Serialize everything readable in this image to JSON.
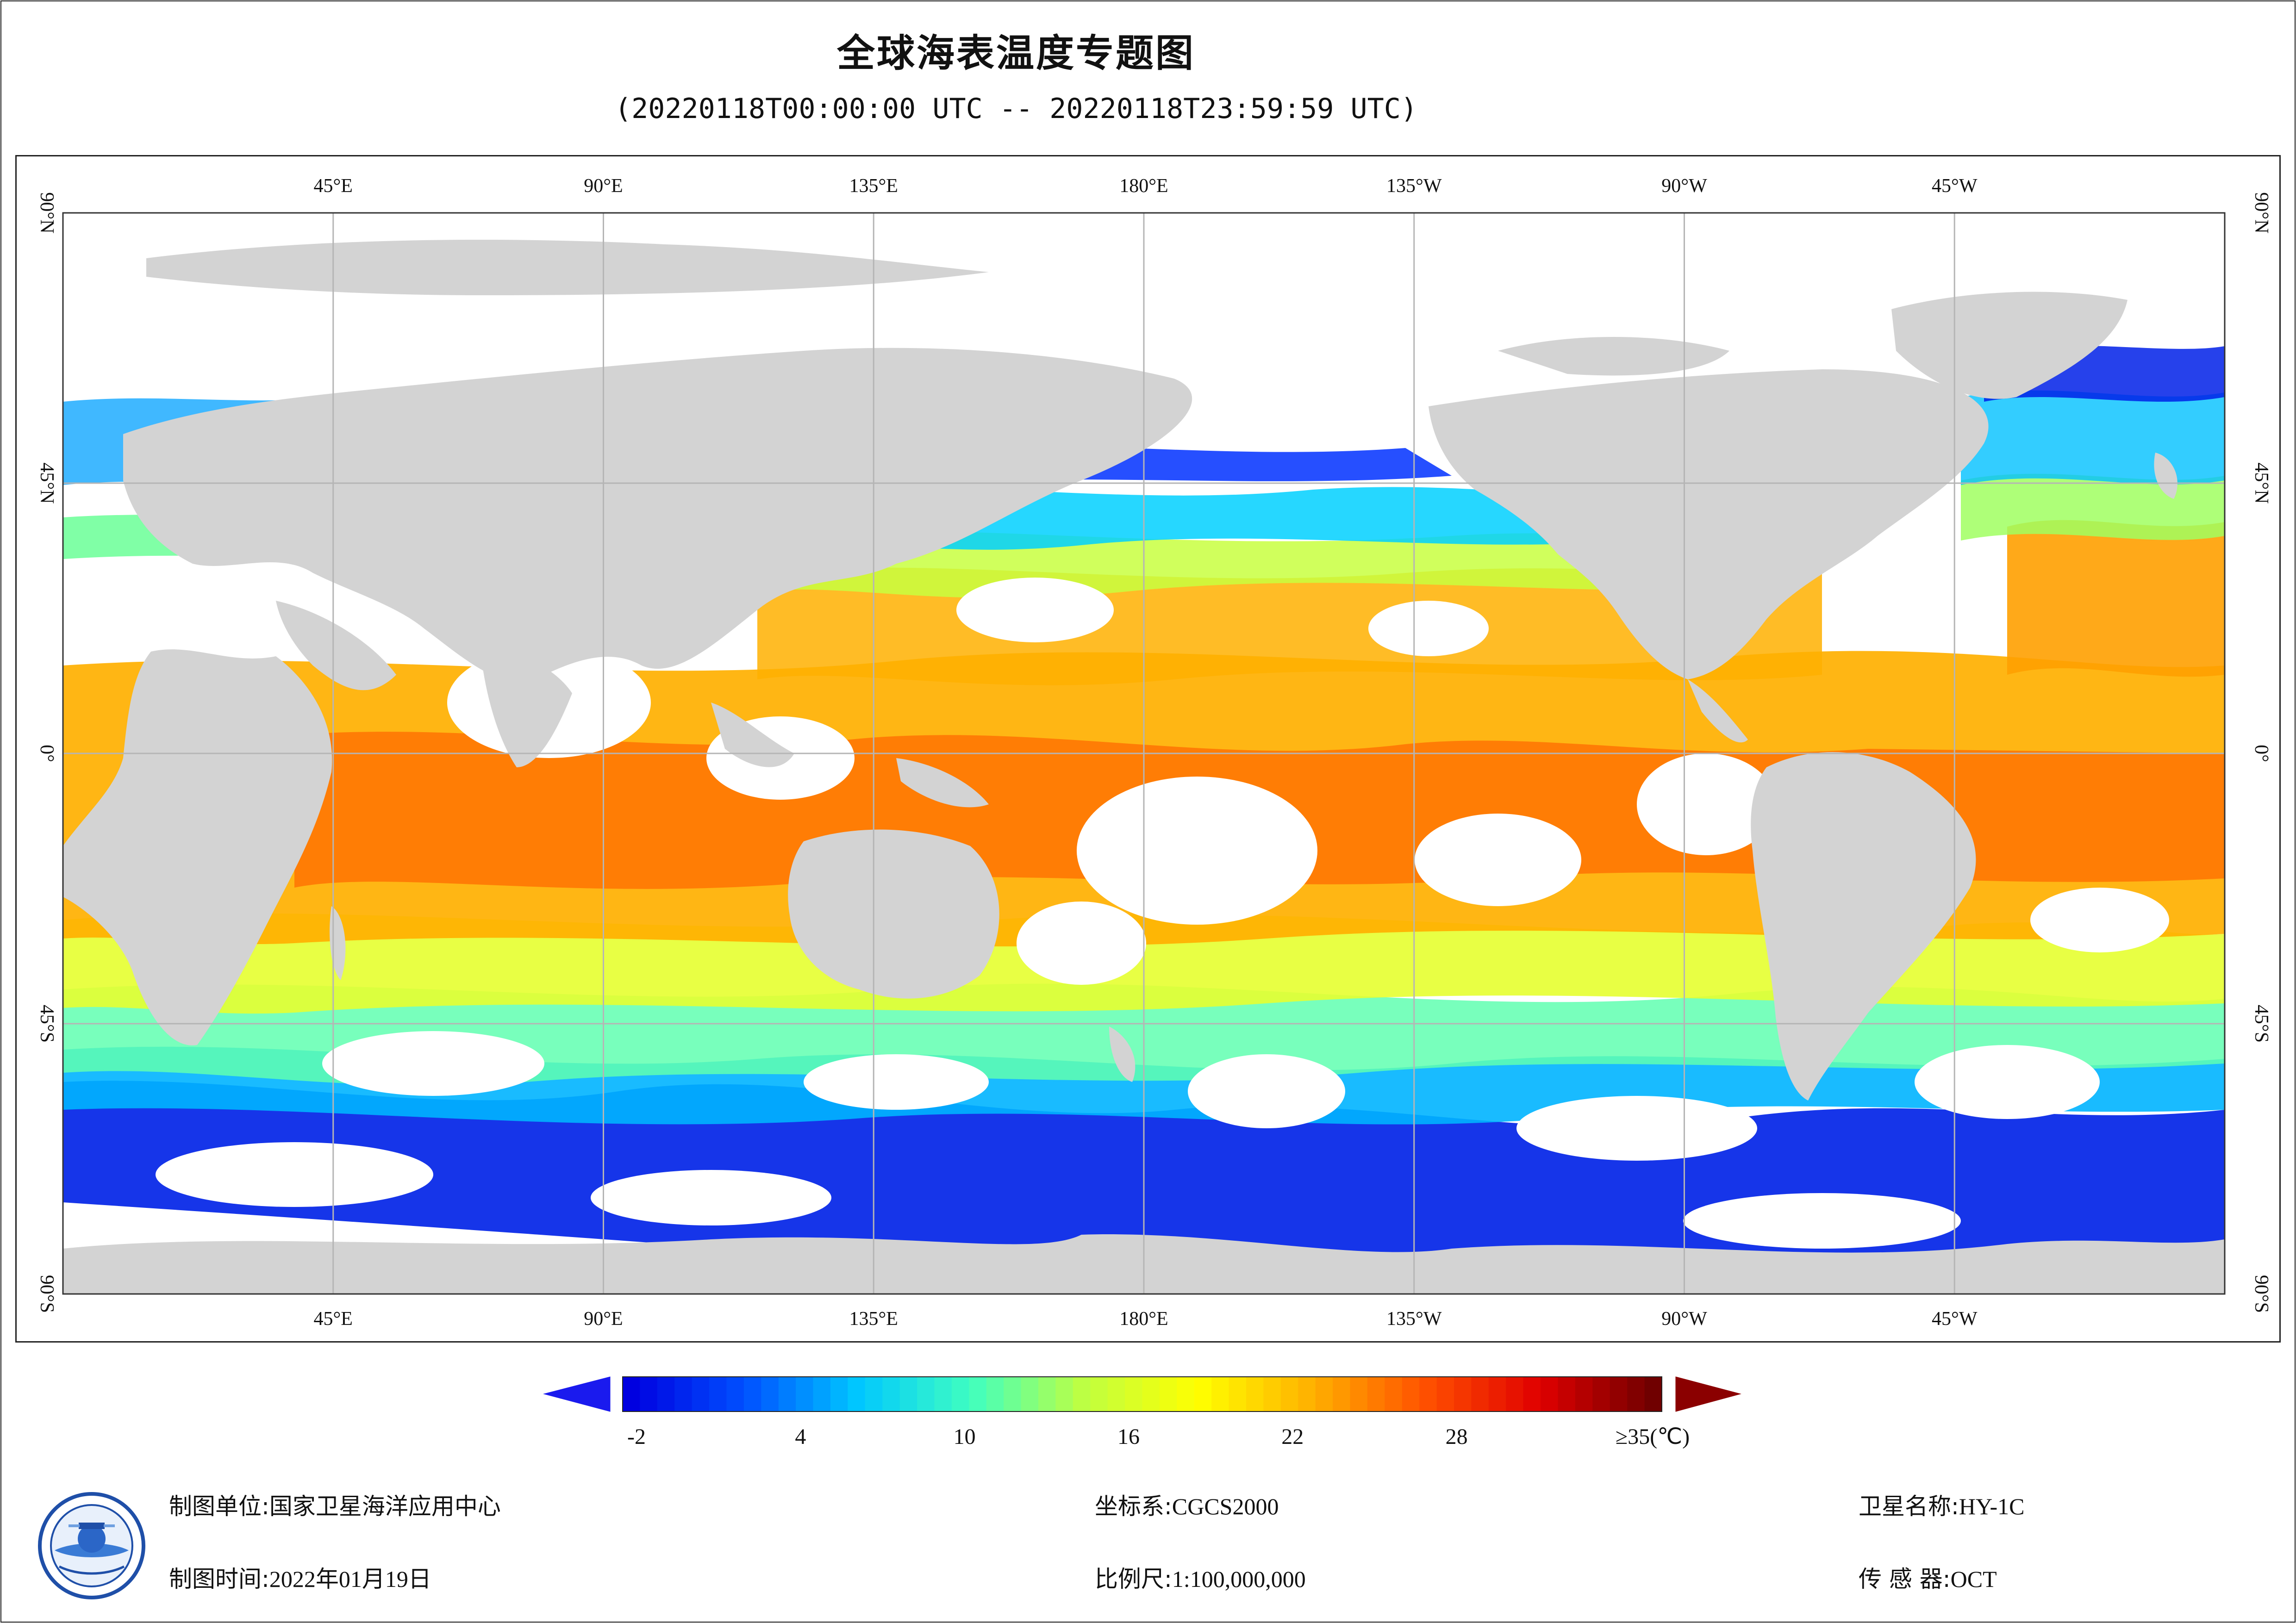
{
  "title": "全球海表温度专题图",
  "subtitle": "(20220118T00:00:00 UTC -- 20220118T23:59:59 UTC)",
  "map": {
    "top_lon_labels": [
      "45°E",
      "90°E",
      "135°E",
      "180°E",
      "135°W",
      "90°W",
      "45°W"
    ],
    "bottom_lon_labels": [
      "45°E",
      "90°E",
      "135°E",
      "180°E",
      "135°W",
      "90°W",
      "45°W"
    ],
    "left_lat_labels": [
      "90°N",
      "45°N",
      "0°",
      "45°S",
      "90°S"
    ],
    "right_lat_labels": [
      "90°N",
      "45°N",
      "0°",
      "45°S",
      "90°S"
    ],
    "land_color": "#d3d3d3",
    "no_data_color": "#ffffff",
    "gridline_color": "#b5b5b5"
  },
  "colorbar": {
    "tick_labels": [
      "-2",
      "4",
      "10",
      "16",
      "22",
      "28",
      "≥35(℃)"
    ],
    "min": -2,
    "max": 35,
    "colors": [
      "#0000e0",
      "#0050ff",
      "#00c8ff",
      "#40ffc0",
      "#c0ff40",
      "#ffff00",
      "#ffb000",
      "#ff5000",
      "#e00000",
      "#700000"
    ]
  },
  "info": {
    "org_label": "制图单位:",
    "org_value": "国家卫星海洋应用中心",
    "date_label": "制图时间:",
    "date_value": "2022年01月19日",
    "crs_label": "坐标系:",
    "crs_value": "CGCS2000",
    "scale_label": "比例尺:",
    "scale_value": "1:100,000,000",
    "satellite_label": "卫星名称:",
    "satellite_value": "HY-1C",
    "sensor_label": "传 感 器:",
    "sensor_value": "OCT"
  },
  "logo": {
    "icon": "nsoas-logo-icon"
  }
}
